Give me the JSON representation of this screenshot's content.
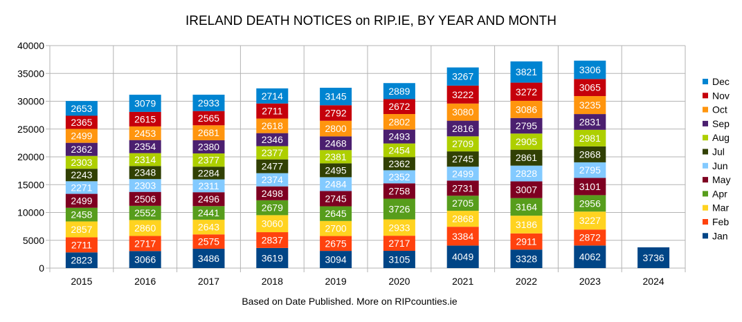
{
  "chart_data": {
    "type": "stacked-bar",
    "title": "IRELAND DEATH NOTICES on RIP.IE, BY YEAR AND MONTH",
    "caption": "Based on Date Published. More on RIPcounties.ie",
    "xlabel": "",
    "ylabel": "",
    "ylim": [
      0,
      40000
    ],
    "yticks": [
      0,
      5000,
      10000,
      15000,
      20000,
      25000,
      30000,
      35000,
      40000
    ],
    "grid": true,
    "legend_position": "right",
    "categories": [
      "2015",
      "2016",
      "2017",
      "2018",
      "2019",
      "2020",
      "2021",
      "2022",
      "2023",
      "2024"
    ],
    "series": [
      {
        "name": "Jan",
        "color": "#004586",
        "values": [
          2823,
          3066,
          3486,
          3619,
          3094,
          3105,
          4049,
          3328,
          4062,
          3736
        ]
      },
      {
        "name": "Feb",
        "color": "#ff420e",
        "values": [
          2711,
          2717,
          2575,
          2837,
          2675,
          2717,
          3384,
          2911,
          2872,
          null
        ]
      },
      {
        "name": "Mar",
        "color": "#ffd320",
        "values": [
          2857,
          2860,
          2643,
          3060,
          2700,
          2933,
          2868,
          3186,
          3227,
          null
        ]
      },
      {
        "name": "Apr",
        "color": "#579d1c",
        "values": [
          2458,
          2552,
          2441,
          2679,
          2645,
          3726,
          2705,
          3164,
          2956,
          null
        ]
      },
      {
        "name": "May",
        "color": "#7e0021",
        "values": [
          2499,
          2506,
          2496,
          2498,
          2745,
          2758,
          2731,
          3007,
          3101,
          null
        ]
      },
      {
        "name": "Jun",
        "color": "#83caff",
        "values": [
          2271,
          2303,
          2311,
          2374,
          2484,
          2352,
          2499,
          2828,
          2795,
          null
        ]
      },
      {
        "name": "Jul",
        "color": "#314004",
        "values": [
          2243,
          2348,
          2284,
          2477,
          2495,
          2362,
          2745,
          2861,
          2868,
          null
        ]
      },
      {
        "name": "Aug",
        "color": "#aecf00",
        "values": [
          2303,
          2314,
          2377,
          2377,
          2381,
          2454,
          2709,
          2905,
          2981,
          null
        ]
      },
      {
        "name": "Sep",
        "color": "#4b1f6f",
        "values": [
          2362,
          2354,
          2380,
          2346,
          2468,
          2493,
          2816,
          2795,
          2831,
          null
        ]
      },
      {
        "name": "Oct",
        "color": "#ff950e",
        "values": [
          2499,
          2453,
          2681,
          2618,
          2800,
          2802,
          3080,
          3086,
          3235,
          null
        ]
      },
      {
        "name": "Nov",
        "color": "#c5000b",
        "values": [
          2365,
          2615,
          2565,
          2711,
          2792,
          2672,
          3222,
          3272,
          3065,
          null
        ]
      },
      {
        "name": "Dec",
        "color": "#0084d1",
        "values": [
          2653,
          3079,
          2933,
          2714,
          3145,
          2889,
          3267,
          3821,
          3306,
          null
        ]
      }
    ]
  }
}
